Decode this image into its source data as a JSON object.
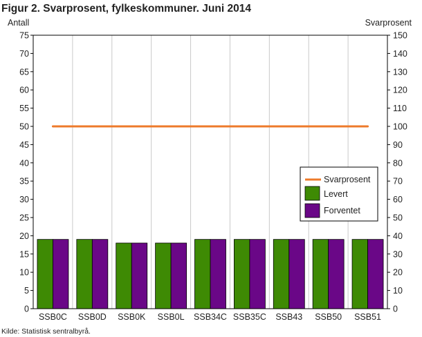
{
  "chart_data": {
    "type": "bar",
    "title": "Figur 2. Svarprosent, fylkeskommuner. Juni 2014",
    "ylabel_left": "Antall",
    "ylabel_right": "Svarprosent",
    "source": "Kilde: Statistisk sentralbyrå.",
    "y_left": {
      "min": 0,
      "max": 75,
      "step": 5
    },
    "y_right": {
      "min": 0,
      "max": 150,
      "step": 10
    },
    "categories": [
      "SSB0C",
      "SSB0D",
      "SSB0K",
      "SSB0L",
      "SSB34C",
      "SSB35C",
      "SSB43",
      "SSB50",
      "SSB51"
    ],
    "series": [
      {
        "name": "Levert",
        "type": "bar",
        "axis": "left",
        "color": "#3e8a04",
        "values": [
          19,
          19,
          18,
          18,
          19,
          19,
          19,
          19,
          19
        ]
      },
      {
        "name": "Forventet",
        "type": "bar",
        "axis": "left",
        "color": "#6a0787",
        "values": [
          19,
          19,
          18,
          18,
          19,
          19,
          19,
          19,
          19
        ]
      },
      {
        "name": "Svarprosent",
        "type": "line",
        "axis": "right",
        "color": "#ee7a2a",
        "values": [
          100,
          100,
          100,
          100,
          100,
          100,
          100,
          100,
          100
        ]
      }
    ],
    "legend": {
      "position": "right-middle",
      "entries": [
        {
          "name": "Svarprosent",
          "symbol": "line",
          "color": "#ee7a2a"
        },
        {
          "name": "Levert",
          "symbol": "box",
          "color": "#3e8a04"
        },
        {
          "name": "Forventet",
          "symbol": "box",
          "color": "#6a0787"
        }
      ]
    },
    "grid": "vertical-category-lines"
  }
}
